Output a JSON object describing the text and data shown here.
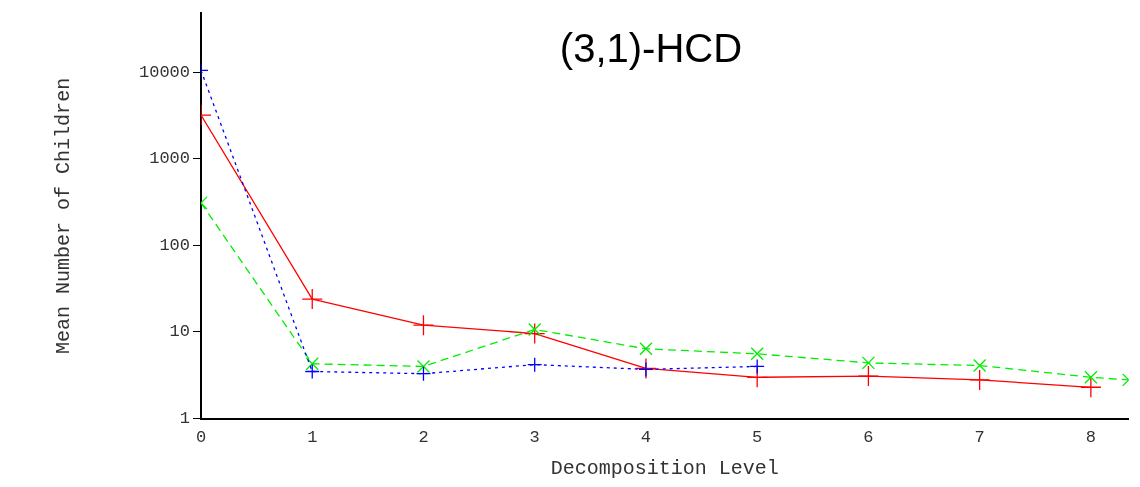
{
  "chart_data": {
    "type": "line",
    "title": "(3,1)-HCD",
    "xlabel": "Decomposition Level",
    "ylabel": "Mean Number of Children",
    "log": "y",
    "grid": false,
    "legend": false,
    "xlim": [
      0,
      8.34
    ],
    "xticks": [
      0,
      1,
      2,
      3,
      4,
      5,
      6,
      7,
      8
    ],
    "ylim": [
      1,
      48000
    ],
    "yticks": [
      1,
      10,
      100,
      1000,
      10000
    ],
    "series": [
      {
        "color": "#ff0000",
        "line_style": "solid",
        "marker": "cross",
        "x": [
          0,
          1,
          2,
          3,
          4,
          5,
          6,
          7,
          8
        ],
        "values": [
          3200,
          24,
          12,
          9.6,
          3.8,
          3.0,
          3.1,
          2.8,
          2.3
        ]
      },
      {
        "color": "#00ee00",
        "line_style": "dashed",
        "marker": "x",
        "x": [
          0,
          1,
          2,
          3,
          4,
          5,
          6,
          7,
          8,
          8.34
        ],
        "values": [
          310,
          4.3,
          4.0,
          10.7,
          6.4,
          5.6,
          4.4,
          4.1,
          3.0,
          2.8
        ]
      },
      {
        "color": "#0000ff",
        "line_style": "dotted",
        "marker": "cross",
        "x": [
          0,
          1,
          2,
          3,
          4,
          5
        ],
        "values": [
          10500,
          3.5,
          3.3,
          4.2,
          3.7,
          4.0
        ]
      }
    ]
  }
}
